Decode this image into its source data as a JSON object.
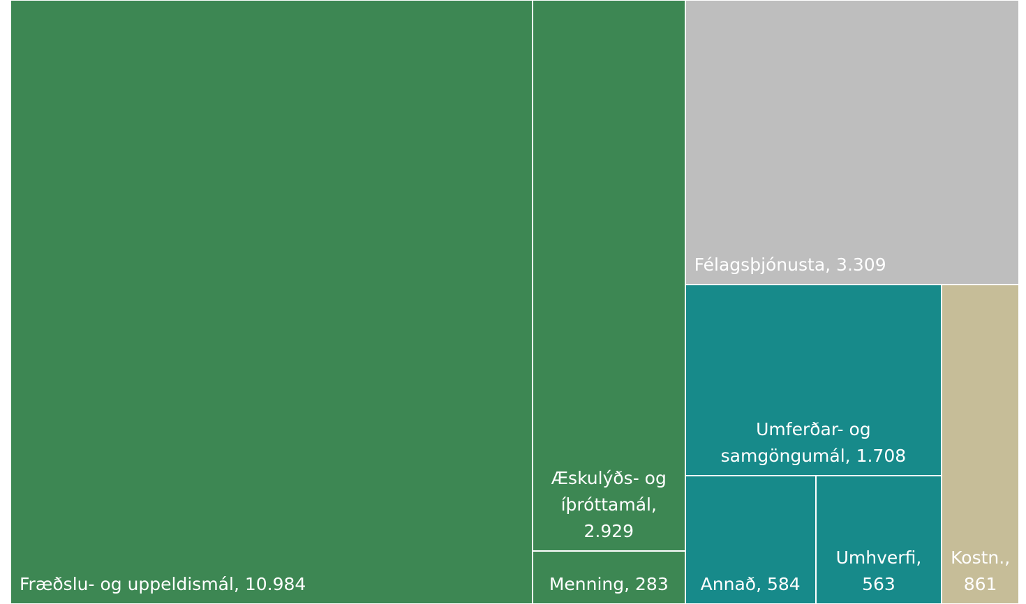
{
  "chart_data": {
    "type": "treemap",
    "categories": [
      "Fræðslu- og uppeldismál,",
      "Æskulýðs- og íþróttamál,",
      "Menning,",
      "Félagsþjónusta,",
      "Umferðar- og samgöngumál,",
      "Annað,",
      "Umhverfi,",
      "Kostn.,"
    ],
    "values": [
      10984,
      2929,
      283,
      3309,
      1708,
      584,
      563,
      861
    ],
    "value_labels": [
      "10.984",
      "2.929",
      "283",
      "3.309",
      "1.708",
      "584",
      "563",
      "861"
    ],
    "colors": [
      "#3d8753",
      "#3d8753",
      "#3d8753",
      "#bebebe",
      "#178a8a",
      "#178a8a",
      "#178a8a",
      "#c6bd98"
    ]
  }
}
